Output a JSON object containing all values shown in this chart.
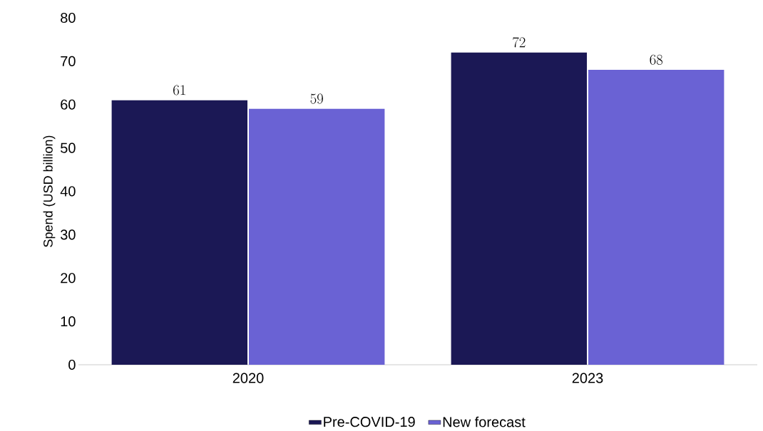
{
  "chart_data": {
    "type": "bar",
    "ylabel": "Spend (USD billion)",
    "categories": [
      "2020",
      "2023"
    ],
    "series": [
      {
        "name": "Pre-COVID-19",
        "color": "#1b1855",
        "values": [
          61,
          72
        ]
      },
      {
        "name": "New forecast",
        "color": "#6a62d4",
        "values": [
          59,
          68
        ]
      }
    ],
    "ylim": [
      0,
      80
    ],
    "yticks": [
      0,
      10,
      20,
      30,
      40,
      50,
      60,
      70,
      80
    ],
    "data_labels": true,
    "legend": "bottom",
    "grid": false
  }
}
